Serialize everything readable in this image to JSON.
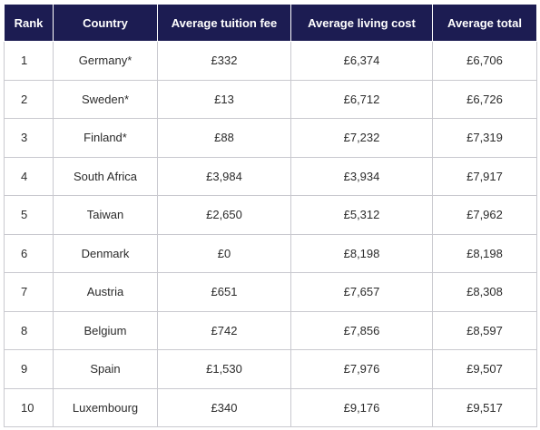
{
  "table": {
    "headers": [
      "Rank",
      "Country",
      "Average tuition fee",
      "Average living cost",
      "Average total"
    ],
    "header_color": "#1c1c52",
    "rows": [
      [
        "1",
        "Germany*",
        "£332",
        "£6,374",
        "£6,706"
      ],
      [
        "2",
        "Sweden*",
        "£13",
        "£6,712",
        "£6,726"
      ],
      [
        "3",
        "Finland*",
        "£88",
        "£7,232",
        "£7,319"
      ],
      [
        "4",
        "South Africa",
        "£3,984",
        "£3,934",
        "£7,917"
      ],
      [
        "5",
        "Taiwan",
        "£2,650",
        "£5,312",
        "£7,962"
      ],
      [
        "6",
        "Denmark",
        "£0",
        "£8,198",
        "£8,198"
      ],
      [
        "7",
        "Austria",
        "£651",
        "£7,657",
        "£8,308"
      ],
      [
        "8",
        "Belgium",
        "£742",
        "£7,856",
        "£8,597"
      ],
      [
        "9",
        "Spain",
        "£1,530",
        "£7,976",
        "£9,507"
      ],
      [
        "10",
        "Luxembourg",
        "£340",
        "£9,176",
        "£9,517"
      ]
    ]
  }
}
